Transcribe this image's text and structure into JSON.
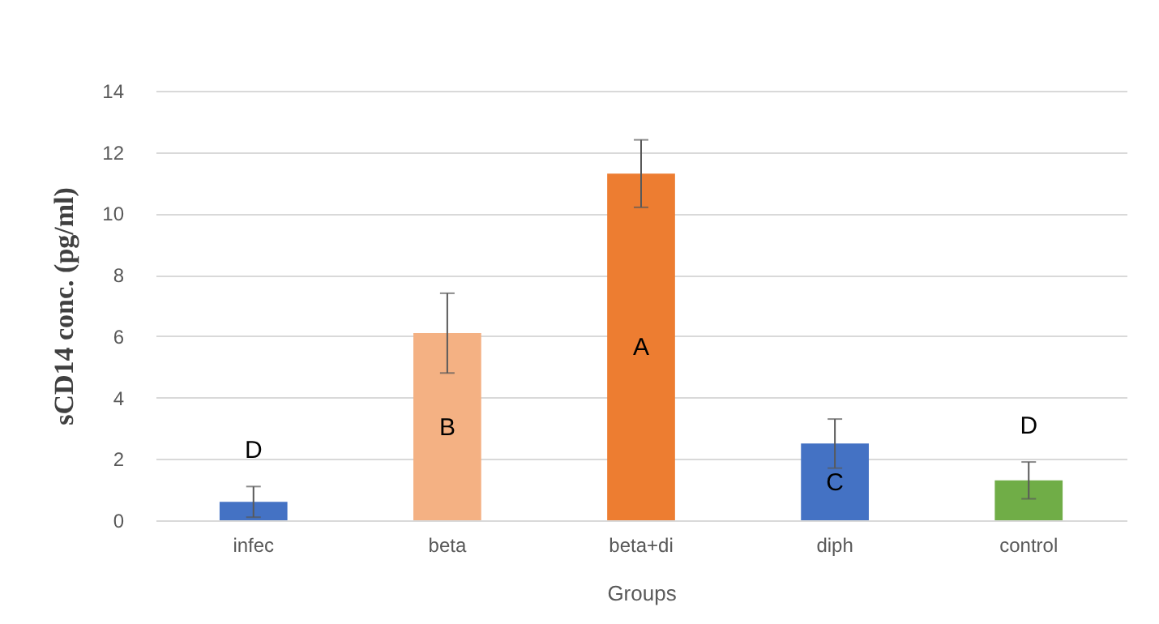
{
  "chart_data": {
    "type": "bar",
    "xlabel": "Groups",
    "ylabel": "sCD14 conc. (pg/ml)",
    "categories": [
      "infec",
      "beta",
      "beta+di",
      "diph",
      "control"
    ],
    "values": [
      0.6,
      6.1,
      11.3,
      2.5,
      1.3
    ],
    "colors": [
      "#4472c4",
      "#f4b183",
      "#ed7d31",
      "#4472c4",
      "#70ad47"
    ],
    "errors": [
      0.5,
      1.3,
      1.1,
      0.8,
      0.6
    ],
    "ylim": [
      0,
      14
    ],
    "yticks": [
      0,
      2,
      4,
      6,
      8,
      10,
      12,
      14
    ],
    "grid": "y",
    "annotations": [
      "D",
      "B",
      "A",
      "C",
      "D"
    ]
  }
}
